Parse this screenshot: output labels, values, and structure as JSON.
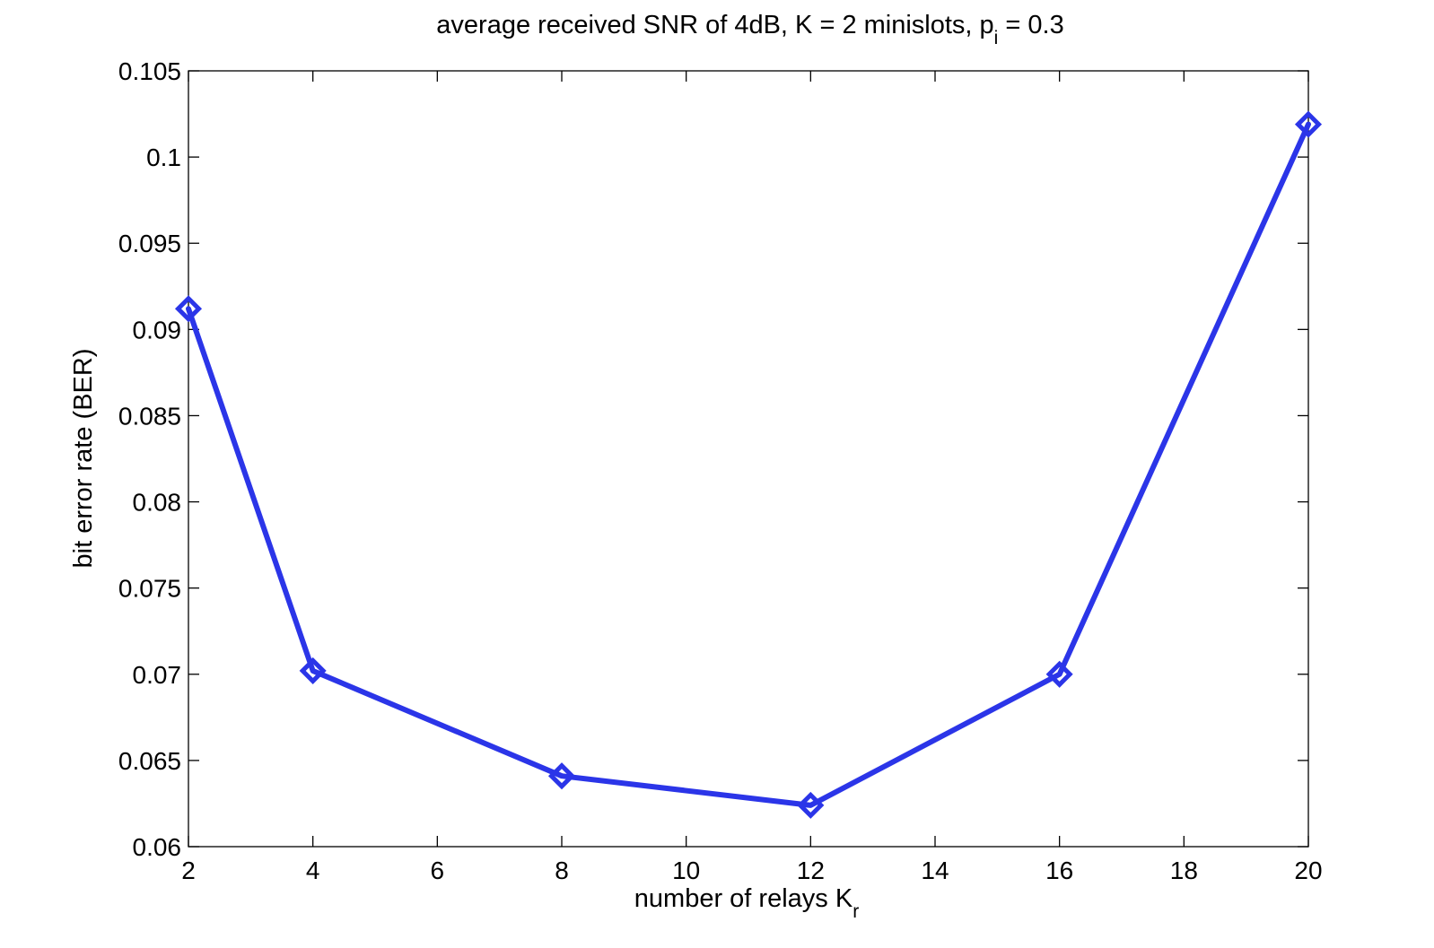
{
  "chart_data": {
    "type": "line",
    "title_parts": {
      "main": "average received SNR of 4dB, K = 2 minislots, p",
      "sub": "i",
      "tail": " = 0.3"
    },
    "xlabel_parts": {
      "main": "number of relays K",
      "sub": "r"
    },
    "ylabel": "bit error rate (BER)",
    "xlim": [
      2,
      20
    ],
    "ylim": [
      0.06,
      0.105
    ],
    "xticks": [
      2,
      4,
      6,
      8,
      10,
      12,
      14,
      16,
      18,
      20
    ],
    "xtick_labels": [
      "2",
      "4",
      "6",
      "8",
      "10",
      "12",
      "14",
      "16",
      "18",
      "20"
    ],
    "yticks": [
      0.06,
      0.065,
      0.07,
      0.075,
      0.08,
      0.085,
      0.09,
      0.095,
      0.1,
      0.105
    ],
    "ytick_labels": [
      "0.06",
      "0.065",
      "0.07",
      "0.075",
      "0.08",
      "0.085",
      "0.09",
      "0.095",
      "0.1",
      "0.105"
    ],
    "grid": false,
    "series": [
      {
        "x": [
          2,
          4,
          8,
          12,
          16,
          20
        ],
        "y": [
          0.0912,
          0.0702,
          0.0641,
          0.0624,
          0.07,
          0.1019
        ],
        "marker": "diamond",
        "color": "#2b35e8"
      }
    ]
  }
}
